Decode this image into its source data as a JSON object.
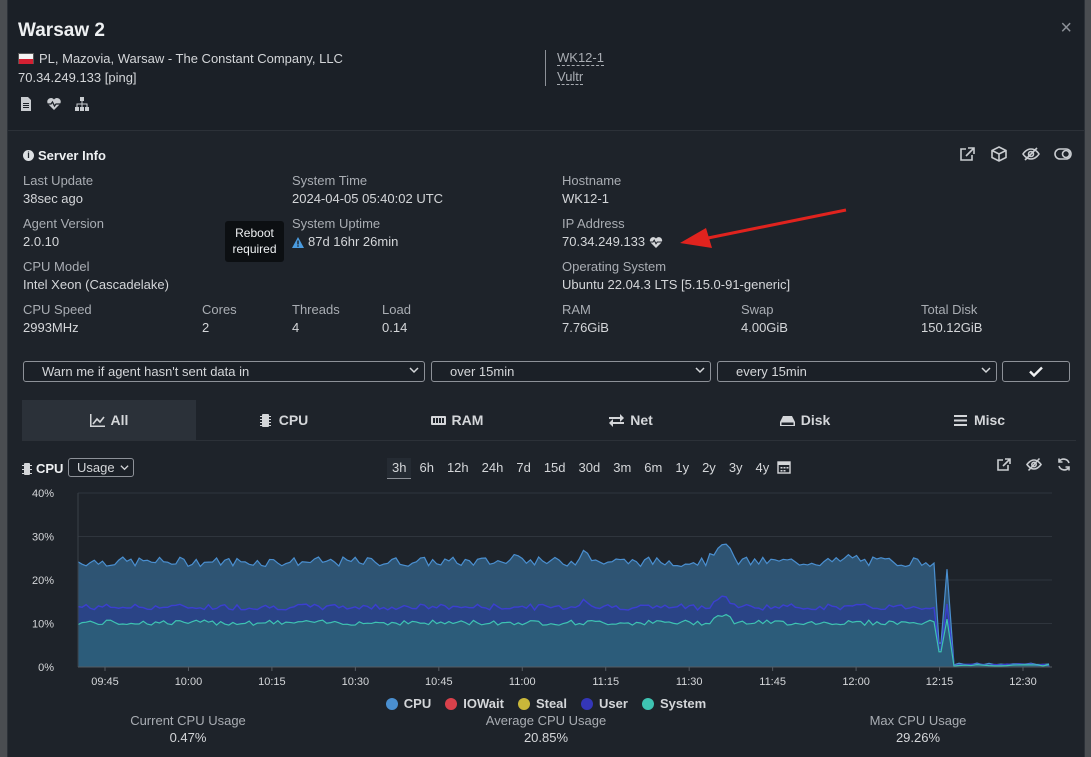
{
  "header": {
    "title": "Warsaw 2",
    "location": "PL, Mazovia, Warsaw - The Constant Company, LLC",
    "ip_line": "70.34.249.133 [ping]",
    "tag1": "WK12-1",
    "tag2": "Vultr",
    "close": "×"
  },
  "server_info": {
    "title": "Server Info",
    "last_update": {
      "label": "Last Update",
      "value": "38sec ago"
    },
    "system_time": {
      "label": "System Time",
      "value": "2024-04-05 05:40:02 UTC"
    },
    "hostname": {
      "label": "Hostname",
      "value": "WK12-1"
    },
    "agent_version": {
      "label": "Agent Version",
      "value": "2.0.10"
    },
    "system_uptime": {
      "label": "System Uptime",
      "value": "87d 16hr 26min"
    },
    "ip_address": {
      "label": "IP Address",
      "value": "70.34.249.133"
    },
    "cpu_model": {
      "label": "CPU Model",
      "value": "Intel Xeon (Cascadelake)"
    },
    "os": {
      "label": "Operating System",
      "value": "Ubuntu 22.04.3 LTS [5.15.0-91-generic]"
    },
    "cpu_speed": {
      "label": "CPU Speed",
      "value": "2993MHz"
    },
    "cores": {
      "label": "Cores",
      "value": "2"
    },
    "threads": {
      "label": "Threads",
      "value": "4"
    },
    "load": {
      "label": "Load",
      "value": "0.14"
    },
    "ram": {
      "label": "RAM",
      "value": "7.76GiB"
    },
    "swap": {
      "label": "Swap",
      "value": "4.00GiB"
    },
    "total_disk": {
      "label": "Total Disk",
      "value": "150.12GiB"
    },
    "tooltip_line1": "Reboot",
    "tooltip_line2": "required"
  },
  "alert": {
    "condition": "Warn me if agent hasn't sent data in",
    "threshold": "over 15min",
    "frequency": "every 15min"
  },
  "tabs": [
    "All",
    "CPU",
    "RAM",
    "Net",
    "Disk",
    "Misc"
  ],
  "chart_header": {
    "label": "CPU",
    "mode": "Usage",
    "ranges": [
      "3h",
      "6h",
      "12h",
      "24h",
      "7d",
      "15d",
      "30d",
      "3m",
      "6m",
      "1y",
      "2y",
      "3y",
      "4y"
    ],
    "active_range": "3h"
  },
  "chart_data": {
    "type": "area",
    "y_ticks": [
      "40%",
      "30%",
      "20%",
      "10%",
      "0%"
    ],
    "ylim": [
      0,
      40
    ],
    "x_ticks": [
      "09:45",
      "10:00",
      "10:15",
      "10:30",
      "10:45",
      "11:00",
      "11:15",
      "11:30",
      "11:45",
      "12:00",
      "12:15",
      "12:30"
    ],
    "grid": true,
    "legend_position": "bottom",
    "series": [
      {
        "name": "CPU",
        "color": "#4a8fd0",
        "baseline": 24.2,
        "after_drop": 0.5
      },
      {
        "name": "IOWait",
        "color": "#d9414b",
        "baseline": 0,
        "after_drop": 0
      },
      {
        "name": "Steal",
        "color": "#c9b73a",
        "baseline": 0,
        "after_drop": 0
      },
      {
        "name": "User",
        "color": "#3436b8",
        "baseline": 13.8,
        "after_drop": 0.3
      },
      {
        "name": "System",
        "color": "#3ec3b2",
        "baseline": 10.2,
        "after_drop": 0.2
      }
    ],
    "events": [
      {
        "x": "11:00",
        "cpu": 25.5
      },
      {
        "x": "11:18",
        "cpu": 27.5
      },
      {
        "x": "11:37",
        "cpu": 28.8
      },
      {
        "x": "12:20",
        "cpu": 22.5,
        "note": "spike before drop"
      },
      {
        "x": "12:22",
        "cpu": 0.5
      }
    ]
  },
  "stats": {
    "current": {
      "label": "Current CPU Usage",
      "value": "0.47%"
    },
    "average": {
      "label": "Average CPU Usage",
      "value": "20.85%"
    },
    "max": {
      "label": "Max CPU Usage",
      "value": "29.26%"
    }
  }
}
